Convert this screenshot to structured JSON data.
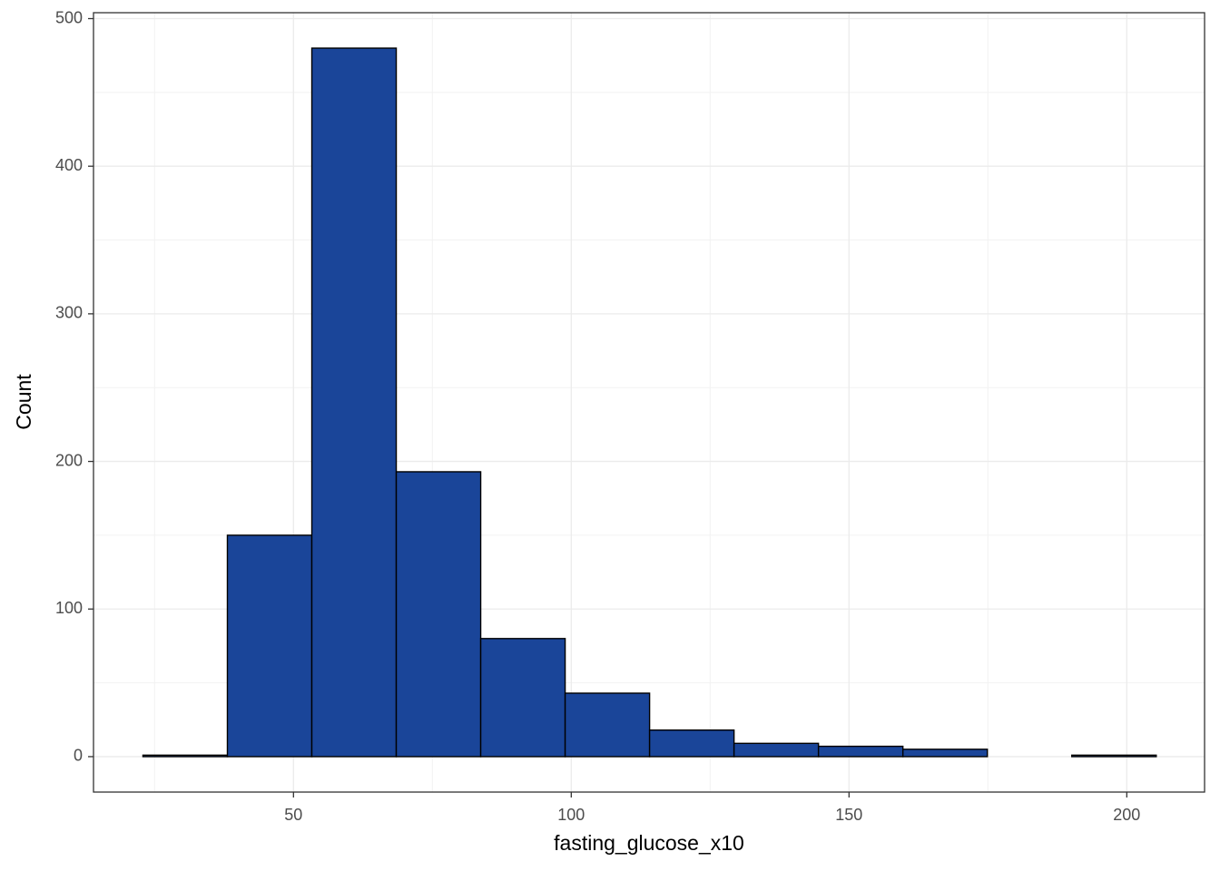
{
  "chart_data": {
    "type": "histogram",
    "x_label": "fasting_glucose_x10",
    "y_label": "Count",
    "bins": [
      22.9,
      38.1,
      53.3,
      68.5,
      83.7,
      98.9,
      114.1,
      129.3,
      144.5,
      159.7,
      174.9,
      190.1,
      205.3
    ],
    "values": [
      1,
      150,
      480,
      193,
      80,
      43,
      18,
      9,
      7,
      5,
      0,
      1
    ],
    "color": "#1a4599",
    "edge_color": "#000000",
    "xlim": [
      14,
      214
    ],
    "ylim": [
      -24,
      504
    ],
    "xticks": [
      50,
      100,
      150,
      200
    ],
    "yticks": [
      0,
      100,
      200,
      300,
      400,
      500
    ],
    "minor_xticks": [
      25,
      75,
      125,
      175
    ],
    "minor_yticks": [
      50,
      150,
      250,
      350,
      450
    ],
    "grid": true
  }
}
